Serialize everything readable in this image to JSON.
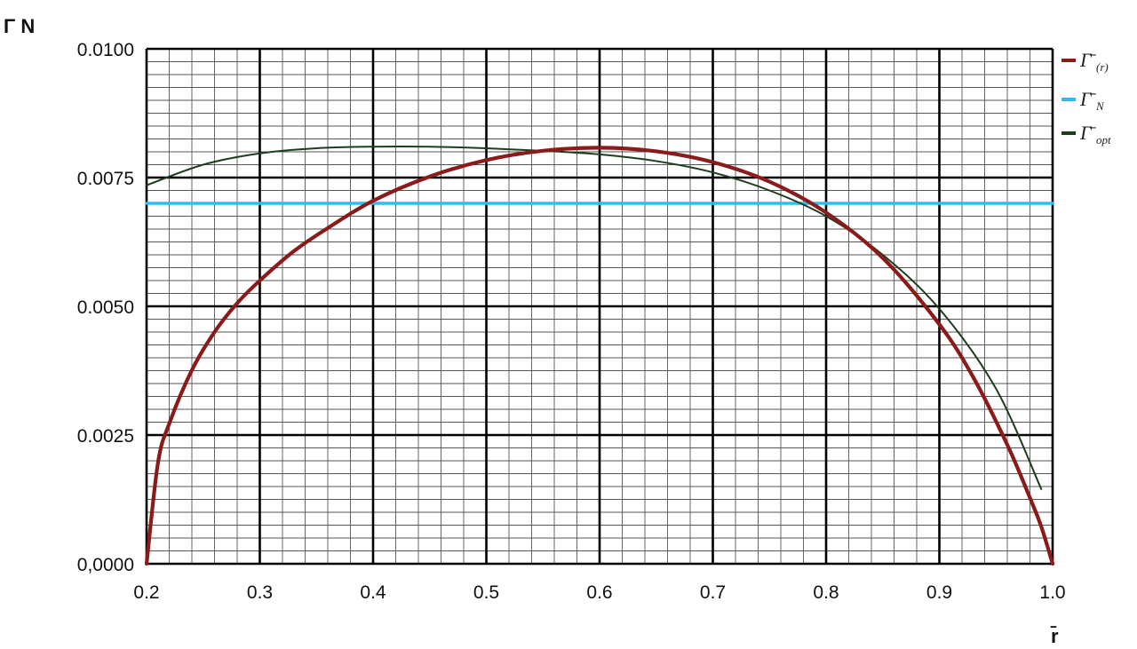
{
  "chart_data": {
    "type": "line",
    "xlabel": "r̄",
    "ylabel": "Γ N",
    "xlim": [
      0.2,
      1.0
    ],
    "ylim": [
      0.0,
      0.01
    ],
    "x_ticks": [
      "0.2",
      "0.3",
      "0.4",
      "0.5",
      "0.6",
      "0.7",
      "0.8",
      "0.9",
      "1.0"
    ],
    "y_ticks": [
      "0,0000",
      "0.0025",
      "0.0050",
      "0.0075",
      "0.0100"
    ],
    "grid": true,
    "legend_position": "top-right",
    "series": [
      {
        "name": "Γ̄",
        "subscript": "(r)",
        "color": "#8b1a1a",
        "x": [
          0.2,
          0.21,
          0.22,
          0.24,
          0.26,
          0.28,
          0.3,
          0.33,
          0.36,
          0.4,
          0.45,
          0.5,
          0.55,
          0.6,
          0.65,
          0.7,
          0.75,
          0.8,
          0.85,
          0.9,
          0.93,
          0.96,
          0.98,
          0.99,
          1.0
        ],
        "y": [
          0.0,
          0.00195,
          0.00272,
          0.00376,
          0.0045,
          0.00506,
          0.0055,
          0.00607,
          0.00652,
          0.00705,
          0.00752,
          0.00784,
          0.00802,
          0.00808,
          0.00801,
          0.0078,
          0.00742,
          0.00682,
          0.00594,
          0.00465,
          0.00362,
          0.00231,
          0.00128,
          0.00072,
          0.0
        ]
      },
      {
        "name": "Γ̄",
        "subscript": "N",
        "color": "#33bbee",
        "x": [
          0.2,
          1.0
        ],
        "y": [
          0.007,
          0.007
        ]
      },
      {
        "name": "Γ̄",
        "subscript": "opt",
        "color": "#1e3d1e",
        "x": [
          0.2,
          0.25,
          0.3,
          0.35,
          0.4,
          0.45,
          0.5,
          0.55,
          0.6,
          0.65,
          0.7,
          0.75,
          0.8,
          0.85,
          0.9,
          0.95,
          0.99
        ],
        "y": [
          0.00735,
          0.00775,
          0.00797,
          0.00807,
          0.0081,
          0.0081,
          0.00807,
          0.00802,
          0.00795,
          0.00782,
          0.0076,
          0.00725,
          0.00675,
          0.006,
          0.00495,
          0.0034,
          0.00145
        ]
      }
    ]
  }
}
